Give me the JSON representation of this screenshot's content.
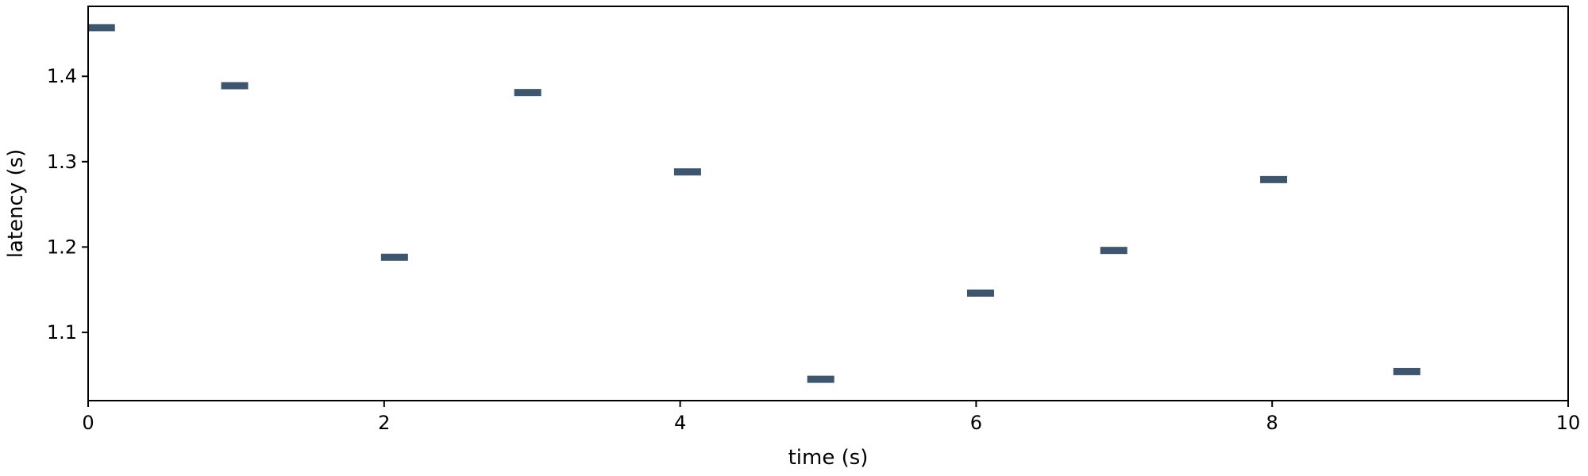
{
  "chart_data": {
    "type": "scatter",
    "title": "",
    "xlabel": "time (s)",
    "ylabel": "latency (s)",
    "xlim": [
      0,
      10
    ],
    "ylim": [
      1.02,
      1.482
    ],
    "x_ticks": [
      0,
      2,
      4,
      6,
      8,
      10
    ],
    "x_tick_labels": [
      "0",
      "2",
      "4",
      "6",
      "8",
      "10"
    ],
    "y_ticks": [
      1.1,
      1.2,
      1.3,
      1.4
    ],
    "y_tick_labels": [
      "1.1",
      "1.2",
      "1.3",
      "1.4"
    ],
    "grid": false,
    "marker": "horizontal-bar",
    "marker_color": "#3d556e",
    "series": [
      {
        "points": [
          {
            "x": 0.09,
            "y": 1.457
          },
          {
            "x": 0.99,
            "y": 1.389
          },
          {
            "x": 2.07,
            "y": 1.188
          },
          {
            "x": 2.97,
            "y": 1.381
          },
          {
            "x": 4.05,
            "y": 1.288
          },
          {
            "x": 4.95,
            "y": 1.045
          },
          {
            "x": 6.03,
            "y": 1.146
          },
          {
            "x": 6.93,
            "y": 1.196
          },
          {
            "x": 8.01,
            "y": 1.279
          },
          {
            "x": 8.91,
            "y": 1.054
          }
        ]
      }
    ]
  }
}
